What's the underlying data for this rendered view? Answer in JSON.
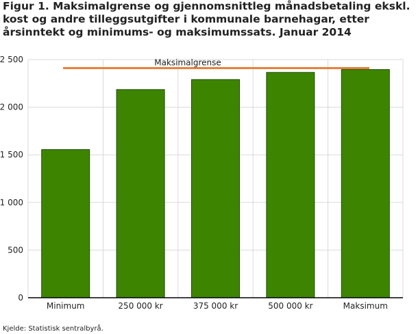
{
  "title": "Figur 1. Maksimalgrense og gjennomsnittleg månadsbetaling ekskl. kost og andre tilleggsutgifter i kommunale barnehagar, etter årsinntekt og minimums- og maksimumssats. Januar 2014",
  "source": "Kjelde: Statistisk sentralbyrå.",
  "chart_data": {
    "type": "bar",
    "categories": [
      "Minimum",
      "250 000 kr",
      "375 000 kr",
      "500 000 kr",
      "Maksimum"
    ],
    "values": [
      1555,
      2185,
      2290,
      2365,
      2395
    ],
    "ylim": [
      0,
      2500
    ],
    "yticks": [
      0,
      500,
      1000,
      1500,
      2000,
      2500
    ],
    "ytick_labels": [
      "0",
      "500",
      "1 000",
      "1 500",
      "2 000",
      "2 500"
    ],
    "grid": true,
    "reference_line": {
      "label": "Maksimalgrense",
      "value": 2410
    },
    "colors": {
      "bar": "#3d8500",
      "bar_edge": "#1f4a00",
      "reference_line": "#e8803a",
      "grid": "#d9d9d9"
    }
  }
}
